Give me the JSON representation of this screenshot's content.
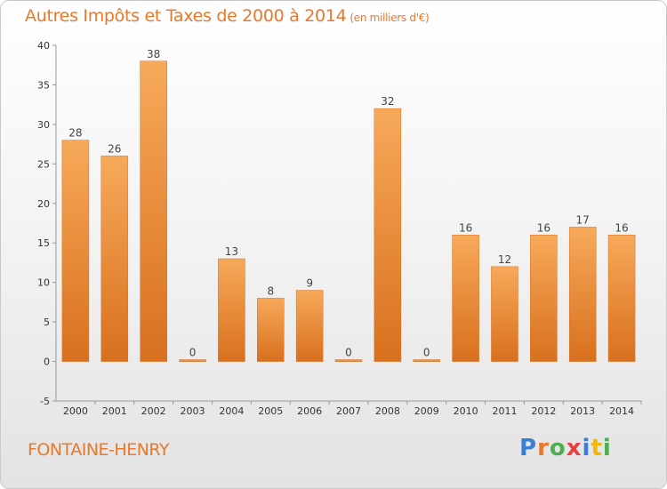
{
  "header": {
    "title": "Autres Impôts et Taxes de 2000 à 2014",
    "subtitle": "(en milliers d'€)"
  },
  "footer": {
    "commune": "FONTAINE-HENRY",
    "logo_letters": [
      "P",
      "r",
      "o",
      "x",
      "i",
      "t",
      "i"
    ],
    "logo_colors": [
      "#3a7fd4",
      "#e8782a",
      "#4caf50",
      "#e84040",
      "#3a7fd4",
      "#f2b705",
      "#4caf50"
    ]
  },
  "chart_data": {
    "type": "bar",
    "categories": [
      "2000",
      "2001",
      "2002",
      "2003",
      "2004",
      "2005",
      "2006",
      "2007",
      "2008",
      "2009",
      "2010",
      "2011",
      "2012",
      "2013",
      "2014"
    ],
    "values": [
      28,
      26,
      38,
      0,
      13,
      8,
      9,
      0,
      32,
      0,
      16,
      12,
      16,
      17,
      16
    ],
    "data_labels": [
      "28",
      "26",
      "38",
      "0",
      "13",
      "8",
      "9",
      "0",
      "32",
      "0",
      "16",
      "12",
      "16",
      "17",
      "16"
    ],
    "yticks": [
      "-5",
      "0",
      "5",
      "10",
      "15",
      "20",
      "25",
      "30",
      "35",
      "40"
    ],
    "ylim": [
      -5,
      40
    ],
    "grid": false,
    "bar_color": "#e8782a"
  }
}
